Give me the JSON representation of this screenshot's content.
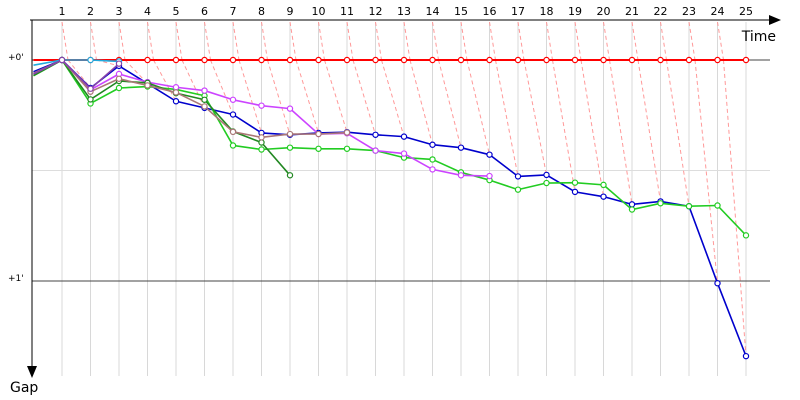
{
  "chart_data": {
    "type": "line",
    "title": "",
    "xlabel": "Time",
    "ylabel": "Gap",
    "x": [
      1,
      2,
      3,
      4,
      5,
      6,
      7,
      8,
      9,
      10,
      11,
      12,
      13,
      14,
      15,
      16,
      17,
      18,
      19,
      20,
      21,
      22,
      23,
      24,
      25
    ],
    "x_tick_labels": [
      "1",
      "2",
      "3",
      "4",
      "5",
      "6",
      "7",
      "8",
      "9",
      "10",
      "11",
      "12",
      "13",
      "14",
      "15",
      "16",
      "17",
      "18",
      "19",
      "20",
      "21",
      "22",
      "23",
      "24",
      "25"
    ],
    "y_tick_labels": [
      "+0'",
      "+1'"
    ],
    "y_ticks": [
      0,
      60
    ],
    "ylim": [
      0,
      80
    ],
    "y_axis_inverted": true,
    "grid": true,
    "series": [
      {
        "color": "#ff0000",
        "values": [
          [
            0,
            0
          ],
          [
            1,
            0
          ],
          [
            2,
            0
          ],
          [
            3,
            0
          ],
          [
            4,
            0
          ],
          [
            5,
            0
          ],
          [
            6,
            0
          ],
          [
            7,
            0
          ],
          [
            8,
            0
          ],
          [
            9,
            0
          ],
          [
            10,
            0
          ],
          [
            11,
            0
          ],
          [
            12,
            0
          ],
          [
            13,
            0
          ],
          [
            14,
            0
          ],
          [
            15,
            0
          ],
          [
            16,
            0
          ],
          [
            17,
            0
          ],
          [
            18,
            0
          ],
          [
            19,
            0
          ],
          [
            20,
            0
          ],
          [
            21,
            0
          ],
          [
            22,
            0
          ],
          [
            23,
            0
          ],
          [
            24,
            0
          ],
          [
            25,
            0
          ]
        ]
      },
      {
        "color": "#0000cc",
        "values": [
          [
            0,
            3.2
          ],
          [
            1,
            0
          ],
          [
            2,
            7.6
          ],
          [
            3,
            1.6
          ],
          [
            4,
            6.4
          ],
          [
            5,
            11.2
          ],
          [
            6,
            13.0
          ],
          [
            7,
            14.8
          ],
          [
            8,
            19.8
          ],
          [
            9,
            20.3
          ],
          [
            10,
            19.8
          ],
          [
            11,
            19.6
          ],
          [
            12,
            20.3
          ],
          [
            13,
            20.8
          ],
          [
            14,
            23.0
          ],
          [
            15,
            23.8
          ],
          [
            16,
            25.7
          ],
          [
            17,
            31.6
          ],
          [
            18,
            31.2
          ],
          [
            19,
            35.8
          ],
          [
            20,
            37.1
          ],
          [
            21,
            39.2
          ],
          [
            22,
            38.4
          ],
          [
            23,
            39.7
          ],
          [
            24,
            60.6
          ],
          [
            25,
            80.4
          ]
        ]
      },
      {
        "color": "#22cc22",
        "values": [
          [
            0,
            4.3
          ],
          [
            1,
            0
          ],
          [
            2,
            11.8
          ],
          [
            3,
            7.6
          ],
          [
            4,
            7.2
          ],
          [
            5,
            8.0
          ],
          [
            6,
            9.7
          ],
          [
            7,
            23.2
          ],
          [
            8,
            24.3
          ],
          [
            9,
            23.8
          ],
          [
            10,
            24.1
          ],
          [
            11,
            24.1
          ],
          [
            12,
            24.6
          ],
          [
            13,
            26.5
          ],
          [
            14,
            27.0
          ],
          [
            15,
            30.5
          ],
          [
            16,
            32.6
          ],
          [
            17,
            35.2
          ],
          [
            18,
            33.4
          ],
          [
            19,
            33.3
          ],
          [
            20,
            33.9
          ],
          [
            21,
            40.6
          ],
          [
            22,
            38.9
          ],
          [
            23,
            39.7
          ],
          [
            24,
            39.5
          ],
          [
            25,
            47.6
          ]
        ]
      },
      {
        "color": "#cc44ff",
        "values": [
          [
            0,
            3.8
          ],
          [
            1,
            0
          ],
          [
            2,
            8.1
          ],
          [
            3,
            3.8
          ],
          [
            4,
            6.0
          ],
          [
            5,
            7.4
          ],
          [
            6,
            8.3
          ],
          [
            7,
            10.8
          ],
          [
            8,
            12.4
          ],
          [
            9,
            13.2
          ],
          [
            10,
            20.1
          ],
          [
            11,
            19.9
          ],
          [
            12,
            24.6
          ],
          [
            13,
            25.4
          ],
          [
            14,
            29.7
          ],
          [
            15,
            31.3
          ],
          [
            16,
            31.5
          ]
        ]
      },
      {
        "color": "#228822",
        "values": [
          [
            0,
            4.2
          ],
          [
            1,
            0
          ],
          [
            2,
            10.7
          ],
          [
            3,
            5.7
          ],
          [
            4,
            6.2
          ],
          [
            5,
            9.0
          ],
          [
            6,
            10.8
          ],
          [
            7,
            19.4
          ],
          [
            8,
            22.4
          ],
          [
            9,
            31.3
          ]
        ]
      },
      {
        "color": "#aa7777",
        "values": [
          [
            0,
            3.6
          ],
          [
            1,
            0
          ],
          [
            2,
            8.6
          ],
          [
            3,
            5.1
          ],
          [
            4,
            6.9
          ],
          [
            5,
            8.8
          ],
          [
            6,
            12.6
          ],
          [
            7,
            19.5
          ],
          [
            8,
            21.0
          ],
          [
            9,
            20.1
          ],
          [
            10,
            20.1
          ],
          [
            11,
            19.7
          ]
        ]
      },
      {
        "color": "#22aadd",
        "values": [
          [
            0,
            1.4
          ],
          [
            1,
            0
          ],
          [
            2,
            0
          ],
          [
            3,
            0.4
          ]
        ]
      },
      {
        "color": "#8844aa",
        "values": [
          [
            0,
            3.8
          ],
          [
            1,
            0
          ],
          [
            2,
            7.8
          ],
          [
            3,
            1.0
          ]
        ]
      }
    ]
  }
}
